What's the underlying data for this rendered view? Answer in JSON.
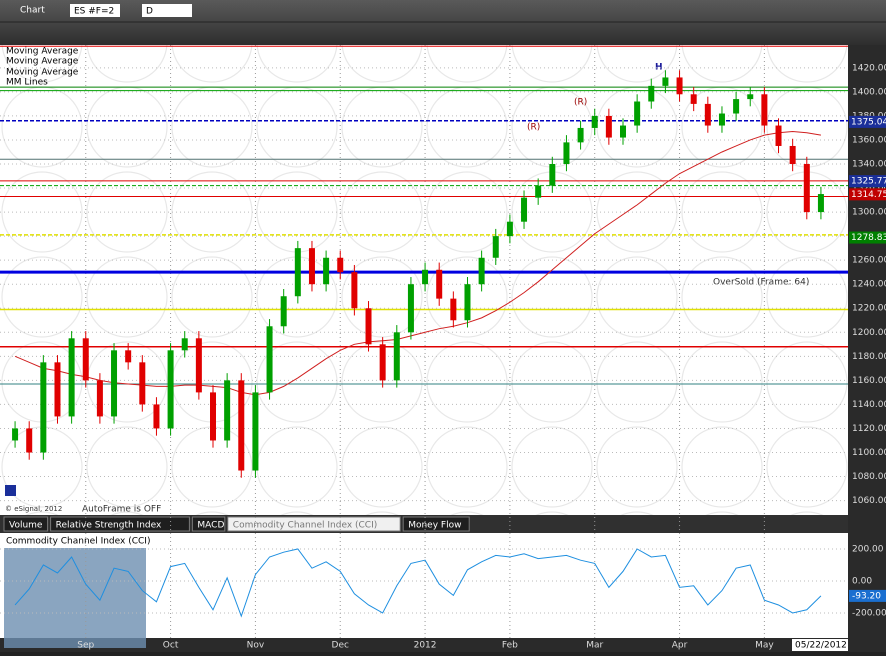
{
  "toolbar": {
    "title": "Chart",
    "symbol": "ES #F=2",
    "interval": "D"
  },
  "legend_labels": [
    "Moving Average",
    "Moving Average",
    "Moving Average",
    "MM Lines"
  ],
  "annotations": {
    "oversold": "OverSold (Frame: 64)",
    "autoframe": "AutoFrame is OFF",
    "copyright": "© eSignal, 2012",
    "peaks": [
      "H",
      "(R)",
      "(R)"
    ]
  },
  "tabs": [
    "Volume",
    "Relative Strength Index",
    "MACD",
    "Commodity Channel Index (CCI)",
    "Money Flow"
  ],
  "chart_data": [
    {
      "type": "candlestick",
      "categories": [
        null,
        null,
        null,
        null,
        null,
        "Sep",
        null,
        null,
        null,
        null,
        null,
        "Oct",
        null,
        null,
        null,
        null,
        null,
        "Nov",
        null,
        null,
        null,
        null,
        null,
        "Dec",
        null,
        null,
        null,
        null,
        null,
        "2012",
        null,
        null,
        null,
        null,
        null,
        "Feb",
        null,
        null,
        null,
        null,
        null,
        "Mar",
        null,
        null,
        null,
        null,
        null,
        "Apr",
        null,
        null,
        null,
        null,
        null,
        "May",
        null,
        null,
        null,
        null
      ],
      "open": [
        1110,
        1120,
        1100,
        1175,
        1130,
        1195,
        1160,
        1130,
        1185,
        1175,
        1140,
        1120,
        1185,
        1195,
        1150,
        1110,
        1160,
        1085,
        1150,
        1205,
        1230,
        1270,
        1240,
        1262,
        1250,
        1220,
        1190,
        1160,
        1200,
        1240,
        1252,
        1228,
        1210,
        1240,
        1262,
        1280,
        1292,
        1312,
        1322,
        1340,
        1358,
        1370,
        1380,
        1362,
        1372,
        1392,
        1405,
        1412,
        1398,
        1390,
        1372,
        1382,
        1394,
        1398,
        1372,
        1355,
        1340,
        1300
      ],
      "high": [
        1126,
        1126,
        1181,
        1181,
        1201,
        1201,
        1166,
        1191,
        1191,
        1181,
        1146,
        1191,
        1201,
        1201,
        1156,
        1166,
        1166,
        1156,
        1211,
        1236,
        1276,
        1276,
        1268,
        1268,
        1256,
        1226,
        1196,
        1206,
        1246,
        1258,
        1258,
        1234,
        1246,
        1268,
        1286,
        1298,
        1318,
        1328,
        1346,
        1364,
        1376,
        1386,
        1386,
        1378,
        1398,
        1411,
        1418,
        1418,
        1404,
        1396,
        1388,
        1400,
        1404,
        1404,
        1378,
        1361,
        1346,
        1321
      ],
      "low": [
        1104,
        1094,
        1094,
        1124,
        1124,
        1154,
        1124,
        1124,
        1169,
        1134,
        1114,
        1114,
        1179,
        1144,
        1104,
        1104,
        1079,
        1079,
        1144,
        1199,
        1224,
        1234,
        1234,
        1244,
        1214,
        1184,
        1154,
        1154,
        1194,
        1234,
        1222,
        1204,
        1204,
        1234,
        1256,
        1274,
        1286,
        1306,
        1316,
        1334,
        1352,
        1364,
        1356,
        1356,
        1366,
        1386,
        1399,
        1392,
        1384,
        1366,
        1366,
        1376,
        1388,
        1366,
        1349,
        1334,
        1294,
        1294
      ],
      "close": [
        1120,
        1100,
        1175,
        1130,
        1195,
        1160,
        1130,
        1185,
        1175,
        1140,
        1120,
        1185,
        1195,
        1150,
        1110,
        1160,
        1085,
        1150,
        1205,
        1230,
        1270,
        1240,
        1262,
        1250,
        1220,
        1190,
        1160,
        1200,
        1240,
        1252,
        1228,
        1210,
        1240,
        1262,
        1280,
        1292,
        1312,
        1322,
        1340,
        1358,
        1370,
        1380,
        1362,
        1372,
        1392,
        1405,
        1412,
        1398,
        1390,
        1372,
        1382,
        1394,
        1398,
        1372,
        1355,
        1340,
        1300,
        1315
      ],
      "up_color": "#00a000",
      "down_color": "#e00000",
      "moving_average": {
        "color": "#d02020",
        "values": [
          1180,
          1175,
          1170,
          1168,
          1165,
          1163,
          1160,
          1158,
          1157,
          1156,
          1155,
          1155,
          1156,
          1156,
          1155,
          1154,
          1150,
          1148,
          1150,
          1155,
          1162,
          1170,
          1178,
          1185,
          1190,
          1192,
          1193,
          1194,
          1197,
          1200,
          1203,
          1205,
          1208,
          1212,
          1218,
          1225,
          1233,
          1242,
          1252,
          1262,
          1272,
          1282,
          1290,
          1298,
          1306,
          1315,
          1324,
          1332,
          1338,
          1344,
          1350,
          1355,
          1360,
          1364,
          1366,
          1367,
          1366,
          1364
        ]
      },
      "ylim": [
        1048,
        1439
      ],
      "yticks": [
        {
          "value": 1060,
          "label": "1060.00"
        },
        {
          "value": 1080,
          "label": "1080.00"
        },
        {
          "value": 1100,
          "label": "1100.00"
        },
        {
          "value": 1120,
          "label": "1120.00"
        },
        {
          "value": 1140,
          "label": "1140.00"
        },
        {
          "value": 1160,
          "label": "1160.00"
        },
        {
          "value": 1180,
          "label": "1180.00"
        },
        {
          "value": 1200,
          "label": "1200.00"
        },
        {
          "value": 1220,
          "label": "1220.00"
        },
        {
          "value": 1240,
          "label": "1240.00"
        },
        {
          "value": 1260,
          "label": "1260.00"
        },
        {
          "value": 1280,
          "label": "1280.00"
        },
        {
          "value": 1300,
          "label": "1300.00"
        },
        {
          "value": 1320,
          "label": "1320.00"
        },
        {
          "value": 1340,
          "label": "1340.00"
        },
        {
          "value": 1360,
          "label": "1360.00"
        },
        {
          "value": 1380,
          "label": "1380.00"
        },
        {
          "value": 1400,
          "label": "1400.00"
        },
        {
          "value": 1420,
          "label": "1420.00"
        }
      ],
      "levels": [
        {
          "value": 1438,
          "color": "#e00000",
          "dash": false,
          "width": 1
        },
        {
          "value": 1404,
          "color": "#008000",
          "dash": false,
          "width": 1
        },
        {
          "value": 1401,
          "color": "#00a000",
          "dash": false,
          "width": 1
        },
        {
          "value": 1376,
          "color": "#0000c0",
          "dash": true,
          "width": 1.5
        },
        {
          "value": 1344,
          "color": "#507070",
          "dash": false,
          "width": 1
        },
        {
          "value": 1326,
          "color": "#e00000",
          "dash": false,
          "width": 1
        },
        {
          "value": 1322,
          "color": "#00a000",
          "dash": true,
          "width": 1
        },
        {
          "value": 1313,
          "color": "#e00000",
          "dash": false,
          "width": 1
        },
        {
          "value": 1281,
          "color": "#e0e000",
          "dash": true,
          "width": 1.5
        },
        {
          "value": 1250,
          "color": "#0000e0",
          "dash": false,
          "width": 3
        },
        {
          "value": 1219,
          "color": "#e0e000",
          "dash": false,
          "width": 1.5
        },
        {
          "value": 1188,
          "color": "#e00000",
          "dash": false,
          "width": 1.5
        },
        {
          "value": 1157,
          "color": "#308080",
          "dash": false,
          "width": 1
        }
      ],
      "markers": [
        {
          "value": 1375.04,
          "color": "#1a2f9a"
        },
        {
          "value": 1325.77,
          "color": "#1a2f9a"
        },
        {
          "value": 1314.75,
          "color": "#c00000"
        },
        {
          "value": 1278.83,
          "color": "#008000"
        }
      ],
      "last_date": "05/22/2012"
    },
    {
      "type": "line",
      "title": "Commodity Channel Index (CCI)",
      "color": "#1e8fe0",
      "values": [
        -150,
        -50,
        100,
        50,
        150,
        -20,
        -120,
        80,
        60,
        -60,
        -130,
        90,
        110,
        -40,
        -180,
        20,
        -220,
        40,
        150,
        180,
        200,
        80,
        120,
        60,
        -80,
        -150,
        -200,
        -30,
        110,
        130,
        -20,
        -90,
        70,
        120,
        160,
        150,
        170,
        140,
        150,
        160,
        130,
        110,
        -40,
        60,
        200,
        150,
        160,
        -40,
        -30,
        -150,
        -60,
        80,
        100,
        -120,
        -150,
        -200,
        -180,
        -93.2
      ],
      "ylim": [
        -419,
        300
      ],
      "yticks": [
        {
          "value": 200,
          "label": "200.00"
        },
        {
          "value": 0,
          "label": "0.00"
        },
        {
          "value": -200,
          "label": "-200.00"
        }
      ],
      "last_value": {
        "value": -93.2,
        "label": "-93.20"
      }
    }
  ]
}
